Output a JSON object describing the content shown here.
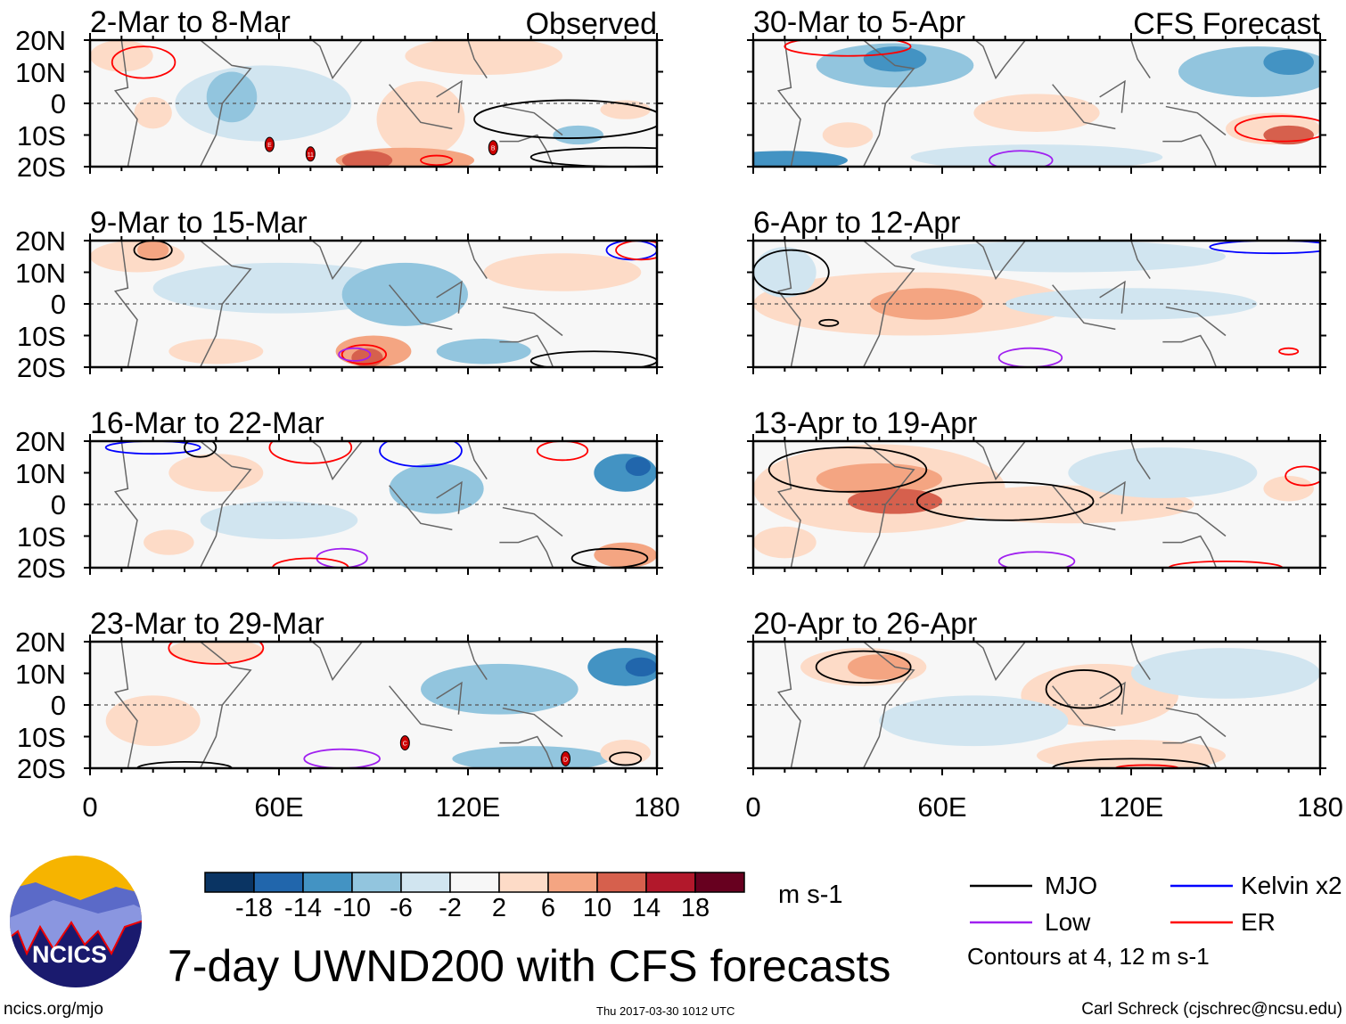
{
  "title": "7-day UWND200 with CFS forecasts",
  "footer": {
    "url": "ncics.org/mjo",
    "timestamp": "Thu 2017-03-30 1012 UTC",
    "author": "Carl Schreck (cjschrec@ncsu.edu)"
  },
  "logo_text": "NCICS",
  "colors": {
    "mjo": "#000000",
    "kelvin": "#0000ff",
    "low": "#a020f0",
    "er": "#ff0000",
    "land": "#666666"
  },
  "chart_data": {
    "type": "heatmap",
    "units": "m s-1",
    "colorbar": {
      "ticks": [
        "-18",
        "-14",
        "-10",
        "-6",
        "-2",
        "2",
        "6",
        "10",
        "14",
        "18"
      ],
      "colors": [
        "#0a3463",
        "#2166ac",
        "#4393c3",
        "#92c5de",
        "#d1e5f0",
        "#f7f7f7",
        "#fddbc7",
        "#f4a582",
        "#d6604d",
        "#b2182b",
        "#67001f"
      ]
    },
    "lat_ticks": [
      "20N",
      "10N",
      "0",
      "10S",
      "20S"
    ],
    "lon_ticks": [
      {
        "v": 0,
        "label": "0"
      },
      {
        "v": 60,
        "label": "60E"
      },
      {
        "v": 120,
        "label": "120E"
      },
      {
        "v": 180,
        "label": "180"
      }
    ],
    "xlim": [
      0,
      180
    ],
    "ylim": [
      -20,
      20
    ],
    "column_labels": {
      "left": "Observed",
      "right": "CFS Forecast"
    },
    "legend": {
      "items": [
        {
          "label": "MJO",
          "key": "mjo"
        },
        {
          "label": "Kelvin x2",
          "key": "kelvin"
        },
        {
          "label": "Low",
          "key": "low"
        },
        {
          "label": "ER",
          "key": "er"
        }
      ],
      "note": "Contours at 4, 12 m s-1"
    },
    "panels": [
      {
        "period": "2-Mar to 8-Mar",
        "col": 0,
        "row": 0,
        "anomalies": [
          [
            10,
            15,
            10,
            5,
            4
          ],
          [
            55,
            0,
            28,
            12,
            -4
          ],
          [
            45,
            2,
            8,
            8,
            -8
          ],
          [
            125,
            15,
            25,
            6,
            4
          ],
          [
            105,
            -5,
            14,
            12,
            4
          ],
          [
            100,
            -18,
            22,
            4,
            8
          ],
          [
            88,
            -18,
            8,
            3,
            12
          ],
          [
            170,
            -2,
            8,
            3,
            6
          ],
          [
            155,
            -10,
            8,
            3,
            -7
          ],
          [
            20,
            -3,
            6,
            5,
            4
          ]
        ],
        "contours": [
          [
            17,
            13,
            10,
            5,
            "er"
          ],
          [
            110,
            -18,
            5,
            1.5,
            "er"
          ],
          [
            152,
            -5,
            30,
            6,
            "mjo"
          ],
          [
            170,
            -17,
            30,
            3,
            "mjo"
          ]
        ],
        "storms": [
          [
            57,
            -13,
            "E"
          ],
          [
            70,
            -16,
            "11"
          ],
          [
            128,
            -14,
            "B"
          ]
        ]
      },
      {
        "period": "9-Mar to 15-Mar",
        "col": 0,
        "row": 1,
        "anomalies": [
          [
            15,
            15,
            15,
            5,
            6
          ],
          [
            20,
            17,
            5,
            3,
            10
          ],
          [
            60,
            5,
            40,
            8,
            -4
          ],
          [
            100,
            3,
            20,
            10,
            -6
          ],
          [
            90,
            -15,
            12,
            5,
            8
          ],
          [
            88,
            -17,
            5,
            3,
            12
          ],
          [
            125,
            -15,
            15,
            4,
            -8
          ],
          [
            40,
            -15,
            15,
            4,
            4
          ],
          [
            150,
            10,
            25,
            6,
            4
          ]
        ],
        "contours": [
          [
            20,
            17,
            6,
            3,
            "mjo"
          ],
          [
            87,
            -16,
            7,
            3,
            "er"
          ],
          [
            84,
            -16,
            5,
            2,
            "low"
          ],
          [
            172,
            17,
            8,
            3,
            "kelvin"
          ],
          [
            175,
            17,
            8,
            3,
            "er"
          ],
          [
            160,
            -18,
            20,
            3,
            "mjo"
          ]
        ],
        "storms": []
      },
      {
        "period": "16-Mar to 22-Mar",
        "col": 0,
        "row": 2,
        "anomalies": [
          [
            170,
            10,
            10,
            6,
            -10
          ],
          [
            174,
            12,
            4,
            3,
            -14
          ],
          [
            110,
            5,
            15,
            8,
            -6
          ],
          [
            40,
            10,
            15,
            6,
            4
          ],
          [
            170,
            -16,
            10,
            4,
            10
          ],
          [
            60,
            -5,
            25,
            6,
            -4
          ],
          [
            25,
            -12,
            8,
            4,
            4
          ]
        ],
        "contours": [
          [
            20,
            18,
            15,
            2,
            "kelvin"
          ],
          [
            35,
            18,
            5,
            3,
            "mjo"
          ],
          [
            70,
            18,
            13,
            5,
            "er"
          ],
          [
            105,
            17,
            13,
            5,
            "kelvin"
          ],
          [
            150,
            17,
            8,
            3,
            "er"
          ],
          [
            80,
            -17,
            8,
            3,
            "low"
          ],
          [
            70,
            -20,
            12,
            3,
            "er"
          ],
          [
            165,
            -17,
            12,
            3,
            "mjo"
          ]
        ],
        "storms": []
      },
      {
        "period": "23-Mar to 29-Mar",
        "col": 0,
        "row": 3,
        "anomalies": [
          [
            170,
            12,
            12,
            6,
            -10
          ],
          [
            175,
            12,
            5,
            3,
            -14
          ],
          [
            40,
            17,
            15,
            4,
            6
          ],
          [
            140,
            -17,
            25,
            4,
            -8
          ],
          [
            130,
            5,
            25,
            8,
            -6
          ],
          [
            20,
            -5,
            15,
            8,
            4
          ],
          [
            170,
            -15,
            8,
            4,
            6
          ]
        ],
        "contours": [
          [
            40,
            18,
            15,
            5,
            "er"
          ],
          [
            80,
            -17,
            12,
            3,
            "low"
          ],
          [
            170,
            -17,
            5,
            2,
            "mjo"
          ],
          [
            30,
            -20,
            15,
            2,
            "mjo"
          ]
        ],
        "storms": [
          [
            100,
            -12,
            "C"
          ],
          [
            151,
            -17,
            "D"
          ]
        ]
      },
      {
        "period": "30-Mar to 5-Apr",
        "col": 1,
        "row": 0,
        "anomalies": [
          [
            45,
            12,
            25,
            7,
            -8
          ],
          [
            45,
            14,
            10,
            4,
            -12
          ],
          [
            160,
            10,
            25,
            8,
            -8
          ],
          [
            170,
            13,
            8,
            4,
            -12
          ],
          [
            90,
            -3,
            20,
            6,
            4
          ],
          [
            165,
            -8,
            15,
            5,
            6
          ],
          [
            170,
            -10,
            8,
            3,
            12
          ],
          [
            90,
            -17,
            40,
            4,
            -4
          ],
          [
            10,
            -18,
            20,
            3,
            -10
          ],
          [
            30,
            -10,
            8,
            4,
            4
          ]
        ],
        "contours": [
          [
            168,
            -8,
            15,
            4,
            "er"
          ],
          [
            30,
            18,
            20,
            3,
            "er"
          ],
          [
            85,
            -18,
            10,
            3,
            "low"
          ]
        ],
        "storms": []
      },
      {
        "period": "6-Apr to 12-Apr",
        "col": 1,
        "row": 1,
        "anomalies": [
          [
            50,
            0,
            50,
            10,
            6
          ],
          [
            55,
            0,
            18,
            5,
            10
          ],
          [
            100,
            15,
            50,
            5,
            -4
          ],
          [
            120,
            0,
            40,
            5,
            -4
          ],
          [
            10,
            10,
            10,
            8,
            -4
          ]
        ],
        "contours": [
          [
            12,
            10,
            12,
            7,
            "mjo"
          ],
          [
            24,
            -6,
            3,
            1,
            "mjo"
          ],
          [
            88,
            -17,
            10,
            3,
            "low"
          ],
          [
            165,
            18,
            20,
            2,
            "kelvin"
          ],
          [
            170,
            -15,
            3,
            1,
            "er"
          ]
        ],
        "storms": []
      },
      {
        "period": "13-Apr to 19-Apr",
        "col": 1,
        "row": 2,
        "anomalies": [
          [
            40,
            5,
            40,
            14,
            6
          ],
          [
            40,
            8,
            20,
            5,
            10
          ],
          [
            45,
            1,
            15,
            4,
            14
          ],
          [
            100,
            0,
            40,
            6,
            4
          ],
          [
            130,
            10,
            30,
            8,
            -4
          ],
          [
            10,
            -12,
            10,
            5,
            6
          ],
          [
            170,
            5,
            8,
            4,
            6
          ]
        ],
        "contours": [
          [
            30,
            11,
            25,
            7,
            "mjo"
          ],
          [
            80,
            1,
            28,
            6,
            "mjo"
          ],
          [
            90,
            -18,
            12,
            3,
            "low"
          ],
          [
            150,
            -20,
            18,
            2,
            "er"
          ],
          [
            175,
            9,
            6,
            3,
            "er"
          ]
        ],
        "storms": []
      },
      {
        "period": "20-Apr to 26-Apr",
        "col": 1,
        "row": 3,
        "anomalies": [
          [
            35,
            12,
            20,
            6,
            6
          ],
          [
            40,
            12,
            10,
            4,
            10
          ],
          [
            110,
            3,
            25,
            10,
            4
          ],
          [
            120,
            -16,
            30,
            5,
            4
          ],
          [
            70,
            -5,
            30,
            8,
            -4
          ],
          [
            150,
            10,
            30,
            8,
            -4
          ]
        ],
        "contours": [
          [
            35,
            12,
            15,
            5,
            "mjo"
          ],
          [
            105,
            5,
            12,
            6,
            "mjo"
          ],
          [
            120,
            -20,
            25,
            3,
            "mjo"
          ],
          [
            125,
            -20,
            10,
            1,
            "er"
          ]
        ],
        "storms": []
      }
    ]
  }
}
